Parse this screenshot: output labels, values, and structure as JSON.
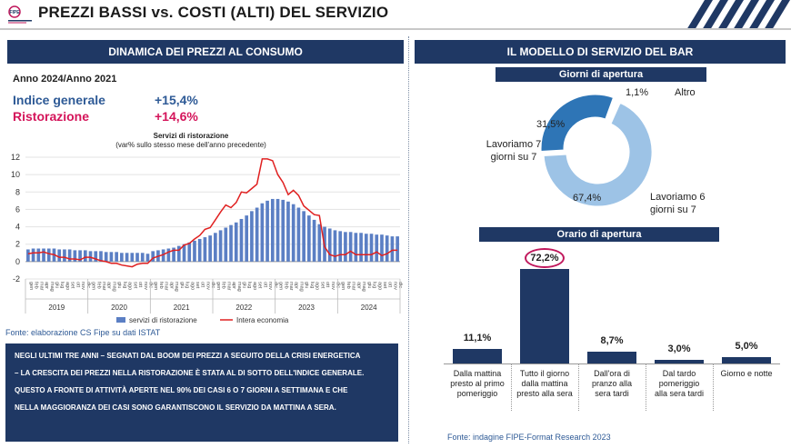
{
  "header": {
    "title": "PREZZI BASSI vs. COSTI (ALTI) DEL SERVIZIO",
    "logo_text": "FIPE",
    "colors": {
      "navy": "#1f3864",
      "blue": "#2e75b6",
      "light_blue": "#9dc3e6",
      "red": "#d4145a"
    }
  },
  "left_panel": {
    "title": "DINAMICA DEI PREZZI AL CONSUMO",
    "period": "Anno 2024/Anno 2021",
    "indice_label": "Indice generale",
    "indice_value": "+15,4%",
    "ristorazione_label": "Ristorazione",
    "ristorazione_value": "+14,6%",
    "source": "Fonte: elaborazione CS Fipe su dati ISTAT",
    "note": [
      "NEGLI ULTIMI TRE ANNI – SEGNATI DAL BOOM DEI PREZZI A SEGUITO DELLA CRISI ENERGETICA",
      "– LA CRESCITA DEI PREZZI NELLA RISTORAZIONE È STATA AL DI SOTTO DELL'INDICE GENERALE.",
      "QUESTO A FRONTE DI ATTIVITÀ APERTE NEL 90% DEI CASI 6 O 7 GIORNI A SETTIMANA E CHE",
      "NELLA MAGGIORANZA DEI CASI SONO GARANTISCONO IL SERVIZIO DA MATTINA A SERA."
    ]
  },
  "right_panel": {
    "title": "IL MODELLO DI SERVIZIO DEL BAR",
    "source": "Fonte: indagine FIPE-Format Research 2023"
  },
  "chart_data": [
    {
      "type": "bar",
      "title": "Servizi di ristorazione",
      "subtitle": "(var% sullo stesso mese dell'anno precedente)",
      "ylim": [
        -2,
        12
      ],
      "yticks": [
        -2,
        0,
        2,
        4,
        6,
        8,
        10,
        12
      ],
      "grid": true,
      "legend_position": "bottom",
      "years": [
        "2019",
        "2020",
        "2021",
        "2022",
        "2023",
        "2024"
      ],
      "month_labels": [
        "gen",
        "feb",
        "mar",
        "apr",
        "mag",
        "giu",
        "lug",
        "ago",
        "set",
        "ott",
        "nov",
        "dic"
      ],
      "series": [
        {
          "name": "servizi di ristorazione",
          "type": "bar",
          "color": "#5b7fc4",
          "values": [
            1.4,
            1.5,
            1.5,
            1.5,
            1.5,
            1.5,
            1.4,
            1.4,
            1.4,
            1.3,
            1.3,
            1.3,
            1.2,
            1.2,
            1.2,
            1.1,
            1.1,
            1.1,
            1.0,
            1.0,
            1.0,
            1.0,
            1.0,
            0.9,
            1.2,
            1.3,
            1.4,
            1.5,
            1.6,
            1.8,
            2.0,
            2.2,
            2.4,
            2.6,
            2.8,
            3.0,
            3.3,
            3.6,
            3.9,
            4.2,
            4.5,
            4.9,
            5.3,
            5.8,
            6.2,
            6.7,
            7.0,
            7.2,
            7.2,
            7.1,
            6.9,
            6.6,
            6.2,
            5.8,
            5.3,
            4.8,
            4.3,
            4.0,
            3.8,
            3.6,
            3.5,
            3.4,
            3.4,
            3.3,
            3.3,
            3.2,
            3.2,
            3.1,
            3.1,
            3.0,
            2.9,
            2.9
          ]
        },
        {
          "name": "Intera economia",
          "type": "line",
          "color": "#e02020",
          "values": [
            0.9,
            1.0,
            1.0,
            1.1,
            0.9,
            0.8,
            0.5,
            0.5,
            0.3,
            0.3,
            0.2,
            0.5,
            0.5,
            0.3,
            0.1,
            0.0,
            -0.2,
            -0.2,
            -0.4,
            -0.5,
            -0.6,
            -0.3,
            -0.2,
            -0.2,
            0.4,
            0.6,
            0.8,
            1.1,
            1.3,
            1.3,
            1.9,
            2.1,
            2.6,
            3.0,
            3.7,
            3.9,
            4.8,
            5.7,
            6.5,
            6.2,
            6.8,
            8.0,
            7.9,
            8.4,
            8.9,
            11.8,
            11.8,
            11.6,
            10.0,
            9.1,
            7.7,
            8.2,
            7.6,
            6.4,
            5.9,
            5.4,
            5.3,
            1.7,
            0.8,
            0.6,
            0.8,
            0.8,
            1.2,
            0.8,
            0.8,
            0.8,
            0.8,
            1.1,
            0.7,
            0.9,
            1.3,
            1.3
          ]
        }
      ]
    },
    {
      "type": "pie",
      "title": "Giorni di apertura",
      "slices": [
        {
          "label": "Altro",
          "value": 1.1,
          "display": "1,1%",
          "color": "#ffffff"
        },
        {
          "label": "Lavoriamo 6 giorni su 7",
          "value": 67.4,
          "display": "67,4%",
          "color": "#9dc3e6"
        },
        {
          "label": "Lavoriamo 7 giorni su 7",
          "value": 31.5,
          "display": "31,5%",
          "color": "#2e75b6"
        }
      ]
    },
    {
      "type": "bar",
      "title": "Orario di apertura",
      "categories": [
        "Dalla mattina presto al primo pomeriggio",
        "Tutto il giorno dalla mattina presto alla sera",
        "Dall'ora di pranzo alla sera tardi",
        "Dal tardo pomeriggio alla sera tardi",
        "Giorno e notte"
      ],
      "category_lines": [
        [
          "Dalla mattina",
          "presto al primo",
          "pomeriggio"
        ],
        [
          "Tutto il giorno",
          "dalla mattina",
          "presto alla sera"
        ],
        [
          "Dall'ora di",
          "pranzo alla",
          "sera tardi"
        ],
        [
          "Dal tardo",
          "pomeriggio",
          "alla sera tardi"
        ],
        [
          "Giorno e notte"
        ]
      ],
      "values": [
        11.1,
        72.2,
        8.7,
        3.0,
        5.0
      ],
      "labels": [
        "11,1%",
        "72,2%",
        "8,7%",
        "3,0%",
        "5,0%"
      ],
      "highlight_index": 1,
      "color": "#1f3864",
      "highlight_color": "#c0185c"
    }
  ]
}
